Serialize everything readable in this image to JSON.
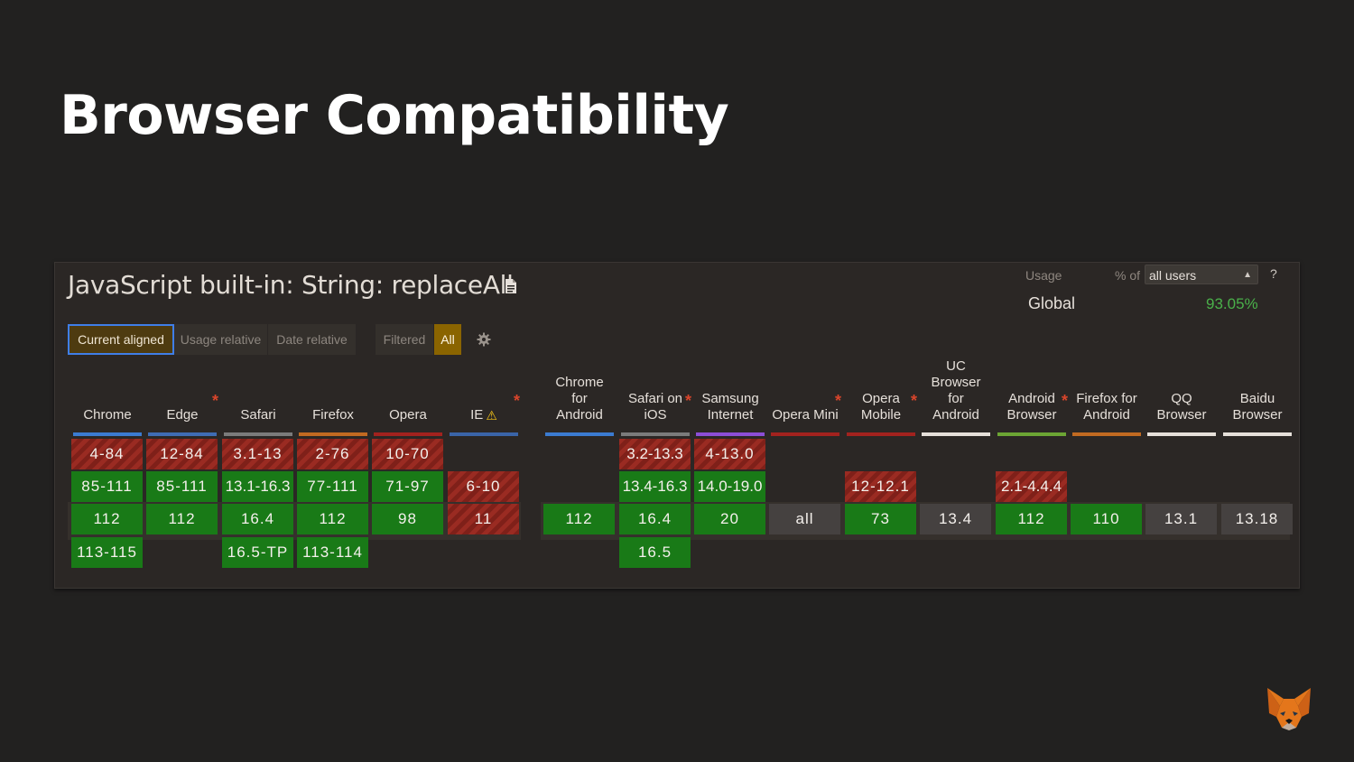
{
  "slide": {
    "title": "Browser Compatibility"
  },
  "widget": {
    "title": "JavaScript built-in: String: replaceAll",
    "title_icon": "document-icon",
    "usage_label": "Usage",
    "pct_of_label": "% of",
    "users_select_value": "all users",
    "help_label": "?",
    "region_label": "Global",
    "region_value": "93.05%",
    "toolbar": {
      "current_aligned": "Current aligned",
      "usage_relative": "Usage relative",
      "date_relative": "Date relative",
      "filtered": "Filtered",
      "all": "All"
    },
    "colors": {
      "supported": "#197a17",
      "unsupported": "#9a2b22",
      "unknown": "#454140",
      "accent": "#3f7ee8"
    },
    "browsers": [
      {
        "name": "Chrome",
        "bar": "#3b7bd1",
        "star": "",
        "cells": [
          [
            "4-84",
            "n"
          ],
          [
            "85-111",
            "y"
          ],
          [
            "112",
            "y"
          ],
          [
            "113-115",
            "y"
          ]
        ]
      },
      {
        "name": "Edge",
        "bar": "#3f6cb4",
        "star": "*",
        "cells": [
          [
            "12-84",
            "n"
          ],
          [
            "85-111",
            "y"
          ],
          [
            "112",
            "y"
          ],
          [
            "",
            ""
          ]
        ]
      },
      {
        "name": "Safari",
        "bar": "#7b7b7b",
        "star": "",
        "cells": [
          [
            "3.1-13",
            "n"
          ],
          [
            "13.1-16.3",
            "y"
          ],
          [
            "16.4",
            "y"
          ],
          [
            "16.5-TP",
            "y"
          ]
        ]
      },
      {
        "name": "Firefox",
        "bar": "#c16a21",
        "star": "",
        "cells": [
          [
            "2-76",
            "n"
          ],
          [
            "77-111",
            "y"
          ],
          [
            "112",
            "y"
          ],
          [
            "113-114",
            "y"
          ]
        ]
      },
      {
        "name": "Opera",
        "bar": "#a2221e",
        "star": "",
        "cells": [
          [
            "10-70",
            "n"
          ],
          [
            "71-97",
            "y"
          ],
          [
            "98",
            "y"
          ],
          [
            "",
            ""
          ]
        ]
      },
      {
        "name": "IE",
        "bar": "#3a64a8",
        "star": "*",
        "warn": "⚠",
        "cells": [
          [
            "",
            ""
          ],
          [
            "6-10",
            "n"
          ],
          [
            "11",
            "n"
          ],
          [
            "",
            ""
          ]
        ]
      },
      {
        "name": "Chrome\nfor\nAndroid",
        "bar": "#3b7bd1",
        "star": "",
        "cells": [
          [
            "",
            ""
          ],
          [
            "",
            ""
          ],
          [
            "112",
            "y"
          ],
          [
            "",
            ""
          ]
        ]
      },
      {
        "name": "Safari on\niOS",
        "bar": "#7b7b7b",
        "star": "*",
        "cells": [
          [
            "3.2-13.3",
            "n"
          ],
          [
            "13.4-16.3",
            "y"
          ],
          [
            "16.4",
            "y"
          ],
          [
            "16.5",
            "y"
          ]
        ]
      },
      {
        "name": "Samsung\nInternet",
        "bar": "#8c4ed6",
        "star": "",
        "cells": [
          [
            "4-13.0",
            "n"
          ],
          [
            "14.0-19.0",
            "y"
          ],
          [
            "20",
            "y"
          ],
          [
            "",
            ""
          ]
        ]
      },
      {
        "name": "Opera Mini",
        "bar": "#a2221e",
        "star": "*",
        "cells": [
          [
            "",
            ""
          ],
          [
            "",
            ""
          ],
          [
            "all",
            "u"
          ],
          [
            "",
            ""
          ]
        ]
      },
      {
        "name": "Opera\nMobile",
        "bar": "#a2221e",
        "star": "*",
        "cells": [
          [
            "",
            ""
          ],
          [
            "12-12.1",
            "n"
          ],
          [
            "73",
            "y"
          ],
          [
            "",
            ""
          ]
        ]
      },
      {
        "name": "UC\nBrowser\nfor\nAndroid",
        "bar": "#e6e0da",
        "star": "",
        "cells": [
          [
            "",
            ""
          ],
          [
            "",
            ""
          ],
          [
            "13.4",
            "u"
          ],
          [
            "",
            ""
          ]
        ]
      },
      {
        "name": "Android\nBrowser",
        "bar": "#6ca534",
        "star": "*",
        "cells": [
          [
            "",
            ""
          ],
          [
            "2.1-4.4.4",
            "n"
          ],
          [
            "112",
            "y"
          ],
          [
            "",
            ""
          ]
        ]
      },
      {
        "name": "Firefox for\nAndroid",
        "bar": "#c16a21",
        "star": "",
        "cells": [
          [
            "",
            ""
          ],
          [
            "",
            ""
          ],
          [
            "110",
            "y"
          ],
          [
            "",
            ""
          ]
        ]
      },
      {
        "name": "QQ\nBrowser",
        "bar": "#e6e0da",
        "star": "",
        "cells": [
          [
            "",
            ""
          ],
          [
            "",
            ""
          ],
          [
            "13.1",
            "u"
          ],
          [
            "",
            ""
          ]
        ]
      },
      {
        "name": "Baidu\nBrowser",
        "bar": "#e6e0da",
        "star": "",
        "cells": [
          [
            "",
            ""
          ],
          [
            "",
            ""
          ],
          [
            "13.18",
            "u"
          ],
          [
            "",
            ""
          ]
        ]
      }
    ]
  },
  "logo": {
    "icon": "fox-icon"
  }
}
